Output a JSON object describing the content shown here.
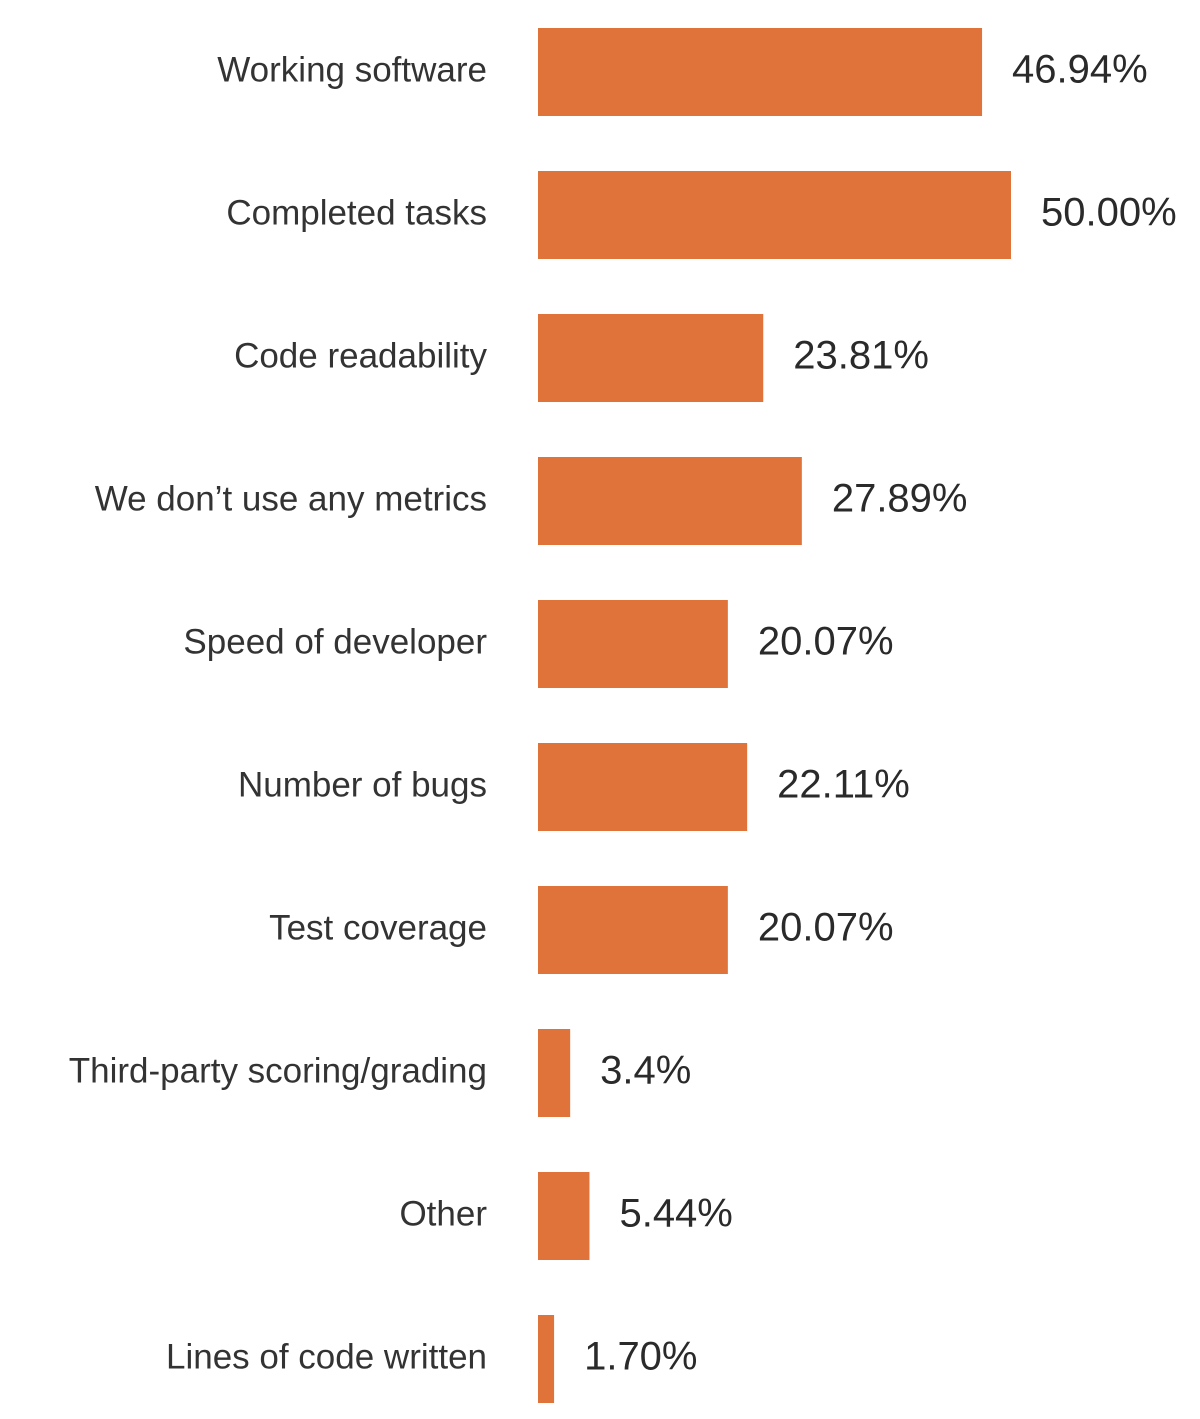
{
  "chart_data": {
    "type": "bar",
    "orientation": "horizontal",
    "title": "",
    "xlabel": "",
    "ylabel": "",
    "grid": false,
    "legend": "none",
    "bar_color": "#E0733A",
    "xlim": [
      0,
      50
    ],
    "categories": [
      "Working software",
      "Completed tasks",
      "Code readability",
      "We don’t use any metrics",
      "Speed of developer",
      "Number of bugs",
      "Test coverage",
      "Third-party scoring/grading",
      "Other",
      "Lines of code written"
    ],
    "values": [
      46.94,
      50.0,
      23.81,
      27.89,
      20.07,
      22.11,
      20.07,
      3.4,
      5.44,
      1.7
    ],
    "value_labels": [
      "46.94%",
      "50.00%",
      "23.81%",
      "27.89%",
      "20.07%",
      "22.11%",
      "20.07%",
      "3.4%",
      "5.44%",
      "1.70%"
    ]
  }
}
